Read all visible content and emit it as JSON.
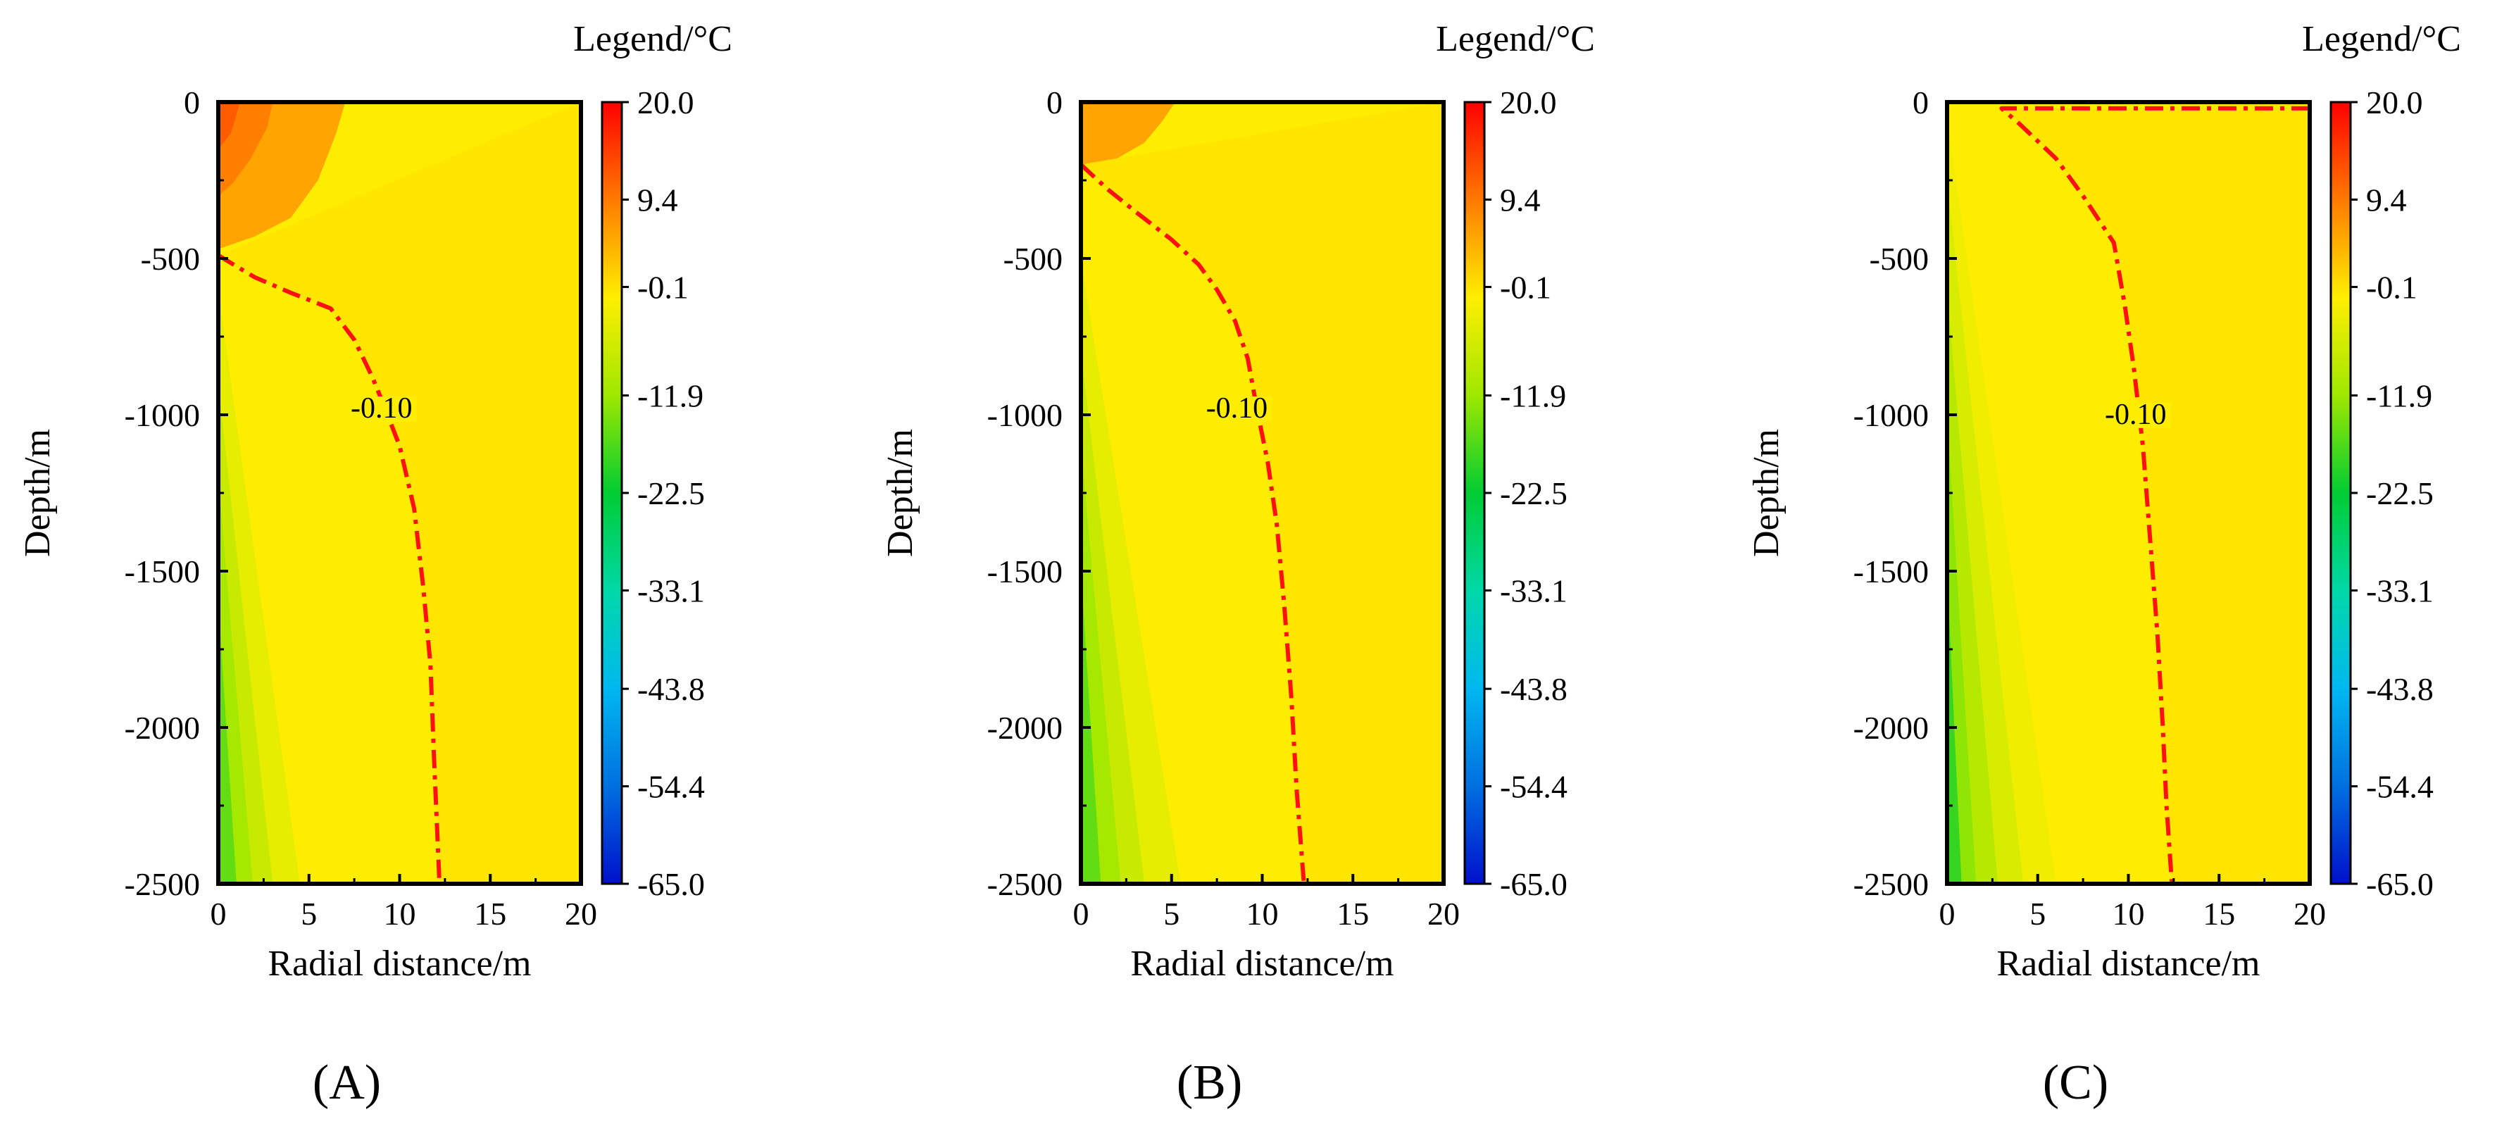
{
  "chart_data": [
    {
      "type": "heatmap",
      "panel_label": "(A)",
      "legend_title": "Legend/°C",
      "xlabel": "Radial distance/m",
      "ylabel": "Depth/m",
      "xlim": [
        0,
        20
      ],
      "ylim": [
        -2500,
        0
      ],
      "x_ticks": [
        "0",
        "5",
        "10",
        "15",
        "20"
      ],
      "y_ticks": [
        "0",
        "-500",
        "-1000",
        "-1500",
        "-2000",
        "-2500"
      ],
      "colorbar_ticks": [
        "20.0",
        "9.4",
        "-0.1",
        "-11.9",
        "-22.5",
        "-33.1",
        "-43.8",
        "-54.4",
        "-65.0"
      ],
      "colorbar_range": [
        -65.0,
        20.0
      ],
      "background_value": 0.0,
      "contour_label": "-0.10",
      "contour_label_at": {
        "x": 9.0,
        "y": -1000
      },
      "contour": [
        {
          "x": 0,
          "y": -490
        },
        {
          "x": 2,
          "y": -560
        },
        {
          "x": 4,
          "y": -610
        },
        {
          "x": 6.2,
          "y": -660
        },
        {
          "x": 7.5,
          "y": -760
        },
        {
          "x": 8.5,
          "y": -880
        },
        {
          "x": 9.2,
          "y": -980
        },
        {
          "x": 10,
          "y": -1100
        },
        {
          "x": 10.8,
          "y": -1300
        },
        {
          "x": 11.3,
          "y": -1550
        },
        {
          "x": 11.7,
          "y": -1800
        },
        {
          "x": 11.9,
          "y": -2100
        },
        {
          "x": 12.2,
          "y": -2500
        }
      ],
      "warm_zones": [
        {
          "value": 6,
          "points": [
            {
              "x": 0,
              "y": 0
            },
            {
              "x": 7,
              "y": 0
            },
            {
              "x": 6.5,
              "y": -100
            },
            {
              "x": 5.5,
              "y": -250
            },
            {
              "x": 4,
              "y": -370
            },
            {
              "x": 2,
              "y": -430
            },
            {
              "x": 0,
              "y": -470
            }
          ]
        },
        {
          "value": 9,
          "points": [
            {
              "x": 0,
              "y": 0
            },
            {
              "x": 3,
              "y": 0
            },
            {
              "x": 2.7,
              "y": -80
            },
            {
              "x": 1.8,
              "y": -180
            },
            {
              "x": 0.8,
              "y": -260
            },
            {
              "x": 0,
              "y": -300
            }
          ]
        },
        {
          "value": 12,
          "points": [
            {
              "x": 0,
              "y": 0
            },
            {
              "x": 1.2,
              "y": 0
            },
            {
              "x": 0.7,
              "y": -100
            },
            {
              "x": 0,
              "y": -150
            }
          ]
        }
      ],
      "cold_zones": [
        {
          "value": -3,
          "points": [
            {
              "x": 0,
              "y": -600
            },
            {
              "x": 4.5,
              "y": -2500
            },
            {
              "x": 0,
              "y": -2500
            }
          ]
        },
        {
          "value": -7,
          "points": [
            {
              "x": 0,
              "y": -900
            },
            {
              "x": 3,
              "y": -2500
            },
            {
              "x": 0,
              "y": -2500
            }
          ]
        },
        {
          "value": -11,
          "points": [
            {
              "x": 0,
              "y": -1200
            },
            {
              "x": 1.9,
              "y": -2500
            },
            {
              "x": 0,
              "y": -2500
            }
          ]
        },
        {
          "value": -16,
          "points": [
            {
              "x": 0,
              "y": -1600
            },
            {
              "x": 1,
              "y": -2500
            },
            {
              "x": 0,
              "y": -2500
            }
          ]
        }
      ]
    },
    {
      "type": "heatmap",
      "panel_label": "(B)",
      "legend_title": "Legend/°C",
      "xlabel": "Radial distance/m",
      "ylabel": "Depth/m",
      "xlim": [
        0,
        20
      ],
      "ylim": [
        -2500,
        0
      ],
      "x_ticks": [
        "0",
        "5",
        "10",
        "15",
        "20"
      ],
      "y_ticks": [
        "0",
        "-500",
        "-1000",
        "-1500",
        "-2000",
        "-2500"
      ],
      "colorbar_ticks": [
        "20.0",
        "9.4",
        "-0.1",
        "-11.9",
        "-22.5",
        "-33.1",
        "-43.8",
        "-54.4",
        "-65.0"
      ],
      "colorbar_range": [
        -65.0,
        20.0
      ],
      "background_value": 0.0,
      "contour_label": "-0.10",
      "contour_label_at": {
        "x": 8.6,
        "y": -1000
      },
      "contour": [
        {
          "x": 0,
          "y": -200
        },
        {
          "x": 1.5,
          "y": -280
        },
        {
          "x": 3,
          "y": -350
        },
        {
          "x": 5,
          "y": -440
        },
        {
          "x": 6.5,
          "y": -520
        },
        {
          "x": 7.5,
          "y": -600
        },
        {
          "x": 8.5,
          "y": -700
        },
        {
          "x": 9.2,
          "y": -820
        },
        {
          "x": 9.7,
          "y": -980
        },
        {
          "x": 10.3,
          "y": -1150
        },
        {
          "x": 10.8,
          "y": -1350
        },
        {
          "x": 11.2,
          "y": -1600
        },
        {
          "x": 11.6,
          "y": -1900
        },
        {
          "x": 11.9,
          "y": -2200
        },
        {
          "x": 12.3,
          "y": -2500
        }
      ],
      "warm_zones": [
        {
          "value": 6,
          "points": [
            {
              "x": 0,
              "y": 0
            },
            {
              "x": 5.2,
              "y": 0
            },
            {
              "x": 4.5,
              "y": -60
            },
            {
              "x": 3.5,
              "y": -130
            },
            {
              "x": 2,
              "y": -180
            },
            {
              "x": 0,
              "y": -200
            }
          ]
        }
      ],
      "cold_zones": [
        {
          "value": -3,
          "points": [
            {
              "x": 0,
              "y": -500
            },
            {
              "x": 5.5,
              "y": -2500
            },
            {
              "x": 0,
              "y": -2500
            }
          ]
        },
        {
          "value": -7,
          "points": [
            {
              "x": 0,
              "y": -800
            },
            {
              "x": 3.5,
              "y": -2500
            },
            {
              "x": 0,
              "y": -2500
            }
          ]
        },
        {
          "value": -11,
          "points": [
            {
              "x": 0,
              "y": -1100
            },
            {
              "x": 2.2,
              "y": -2500
            },
            {
              "x": 0,
              "y": -2500
            }
          ]
        },
        {
          "value": -16,
          "points": [
            {
              "x": 0,
              "y": -1500
            },
            {
              "x": 1.1,
              "y": -2500
            },
            {
              "x": 0,
              "y": -2500
            }
          ]
        }
      ]
    },
    {
      "type": "heatmap",
      "panel_label": "(C)",
      "legend_title": "Legend/°C",
      "xlabel": "Radial distance/m",
      "ylabel": "Depth/m",
      "xlim": [
        0,
        20
      ],
      "ylim": [
        -2500,
        0
      ],
      "x_ticks": [
        "0",
        "5",
        "10",
        "15",
        "20"
      ],
      "y_ticks": [
        "0",
        "-500",
        "-1000",
        "-1500",
        "-2000",
        "-2500"
      ],
      "colorbar_ticks": [
        "20.0",
        "9.4",
        "-0.1",
        "-11.9",
        "-22.5",
        "-33.1",
        "-43.8",
        "-54.4",
        "-65.0"
      ],
      "colorbar_range": [
        -65.0,
        20.0
      ],
      "background_value": 0.0,
      "contour_label": "-0.10",
      "contour_label_at": {
        "x": 10.4,
        "y": -1020
      },
      "contour": [
        {
          "x": 20,
          "y": -20
        },
        {
          "x": 10,
          "y": -20
        },
        {
          "x": 3,
          "y": -20
        },
        {
          "x": 4,
          "y": -70
        },
        {
          "x": 6,
          "y": -180
        },
        {
          "x": 7.5,
          "y": -300
        },
        {
          "x": 9.2,
          "y": -450
        },
        {
          "x": 9.8,
          "y": -650
        },
        {
          "x": 10.3,
          "y": -850
        },
        {
          "x": 10.8,
          "y": -1100
        },
        {
          "x": 11.2,
          "y": -1400
        },
        {
          "x": 11.6,
          "y": -1700
        },
        {
          "x": 11.9,
          "y": -2000
        },
        {
          "x": 12.1,
          "y": -2250
        },
        {
          "x": 12.4,
          "y": -2500
        }
      ],
      "warm_zones": [],
      "cold_zones": [
        {
          "value": -2,
          "points": [
            {
              "x": 0,
              "y": -50
            },
            {
              "x": 6,
              "y": -2500
            },
            {
              "x": 0,
              "y": -2500
            }
          ]
        },
        {
          "value": -5,
          "points": [
            {
              "x": 0,
              "y": -250
            },
            {
              "x": 4.2,
              "y": -2500
            },
            {
              "x": 0,
              "y": -2500
            }
          ]
        },
        {
          "value": -9,
          "points": [
            {
              "x": 0,
              "y": -600
            },
            {
              "x": 2.8,
              "y": -2500
            },
            {
              "x": 0,
              "y": -2500
            }
          ]
        },
        {
          "value": -13,
          "points": [
            {
              "x": 0,
              "y": -1000
            },
            {
              "x": 1.6,
              "y": -2500
            },
            {
              "x": 0,
              "y": -2500
            }
          ]
        },
        {
          "value": -19,
          "points": [
            {
              "x": 0,
              "y": -1500
            },
            {
              "x": 0.8,
              "y": -2500
            },
            {
              "x": 0,
              "y": -2500
            }
          ]
        }
      ]
    }
  ]
}
